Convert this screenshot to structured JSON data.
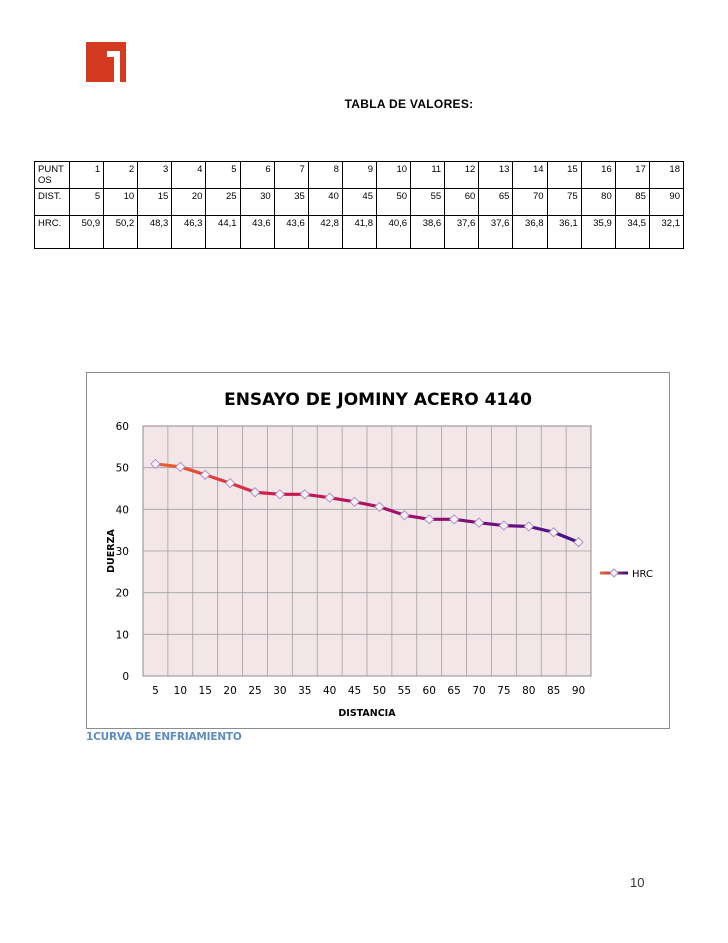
{
  "table_title": "TABLA DE VALORES:",
  "table": {
    "rows": [
      {
        "label": "PUNTOS",
        "values": [
          "1",
          "2",
          "3",
          "4",
          "5",
          "6",
          "7",
          "8",
          "9",
          "10",
          "11",
          "12",
          "13",
          "14",
          "15",
          "16",
          "17",
          "18"
        ]
      },
      {
        "label": "DIST.",
        "values": [
          "5",
          "10",
          "15",
          "20",
          "25",
          "30",
          "35",
          "40",
          "45",
          "50",
          "55",
          "60",
          "65",
          "70",
          "75",
          "80",
          "85",
          "90"
        ]
      },
      {
        "label": "HRC.",
        "values": [
          "50,9",
          "50,2",
          "48,3",
          "46,3",
          "44,1",
          "43,6",
          "43,6",
          "42,8",
          "41,8",
          "40,6",
          "38,6",
          "37,6",
          "37,6",
          "36,8",
          "36,1",
          "35,9",
          "34,5",
          "32,1"
        ]
      }
    ]
  },
  "chart_data": {
    "type": "line",
    "title": "ENSAYO DE JOMINY ACERO 4140",
    "xlabel": "DISTANCIA",
    "ylabel": "DUERZA",
    "categories": [
      "5",
      "10",
      "15",
      "20",
      "25",
      "30",
      "35",
      "40",
      "45",
      "50",
      "55",
      "60",
      "65",
      "70",
      "75",
      "80",
      "85",
      "90"
    ],
    "series": [
      {
        "name": "HRC",
        "values": [
          50.9,
          50.2,
          48.3,
          46.3,
          44.1,
          43.6,
          43.6,
          42.8,
          41.8,
          40.6,
          38.6,
          37.6,
          37.6,
          36.8,
          36.1,
          35.9,
          34.5,
          32.1
        ]
      }
    ],
    "ylim": [
      0,
      60
    ],
    "yticks": [
      "0",
      "10",
      "20",
      "30",
      "40",
      "50",
      "60"
    ],
    "grid": true,
    "legend": "right",
    "colors": {
      "plot_bg": "#f2e6e8",
      "grid": "#a0a0a0",
      "line_start": "#f06a2a",
      "line_mid": "#d01a4a",
      "line_end": "#3a1090",
      "marker_fill": "#f4f4f8",
      "marker_stroke": "#b090c0"
    }
  },
  "caption": "1CURVA DE ENFRIAMIENTO",
  "page_number": "10"
}
